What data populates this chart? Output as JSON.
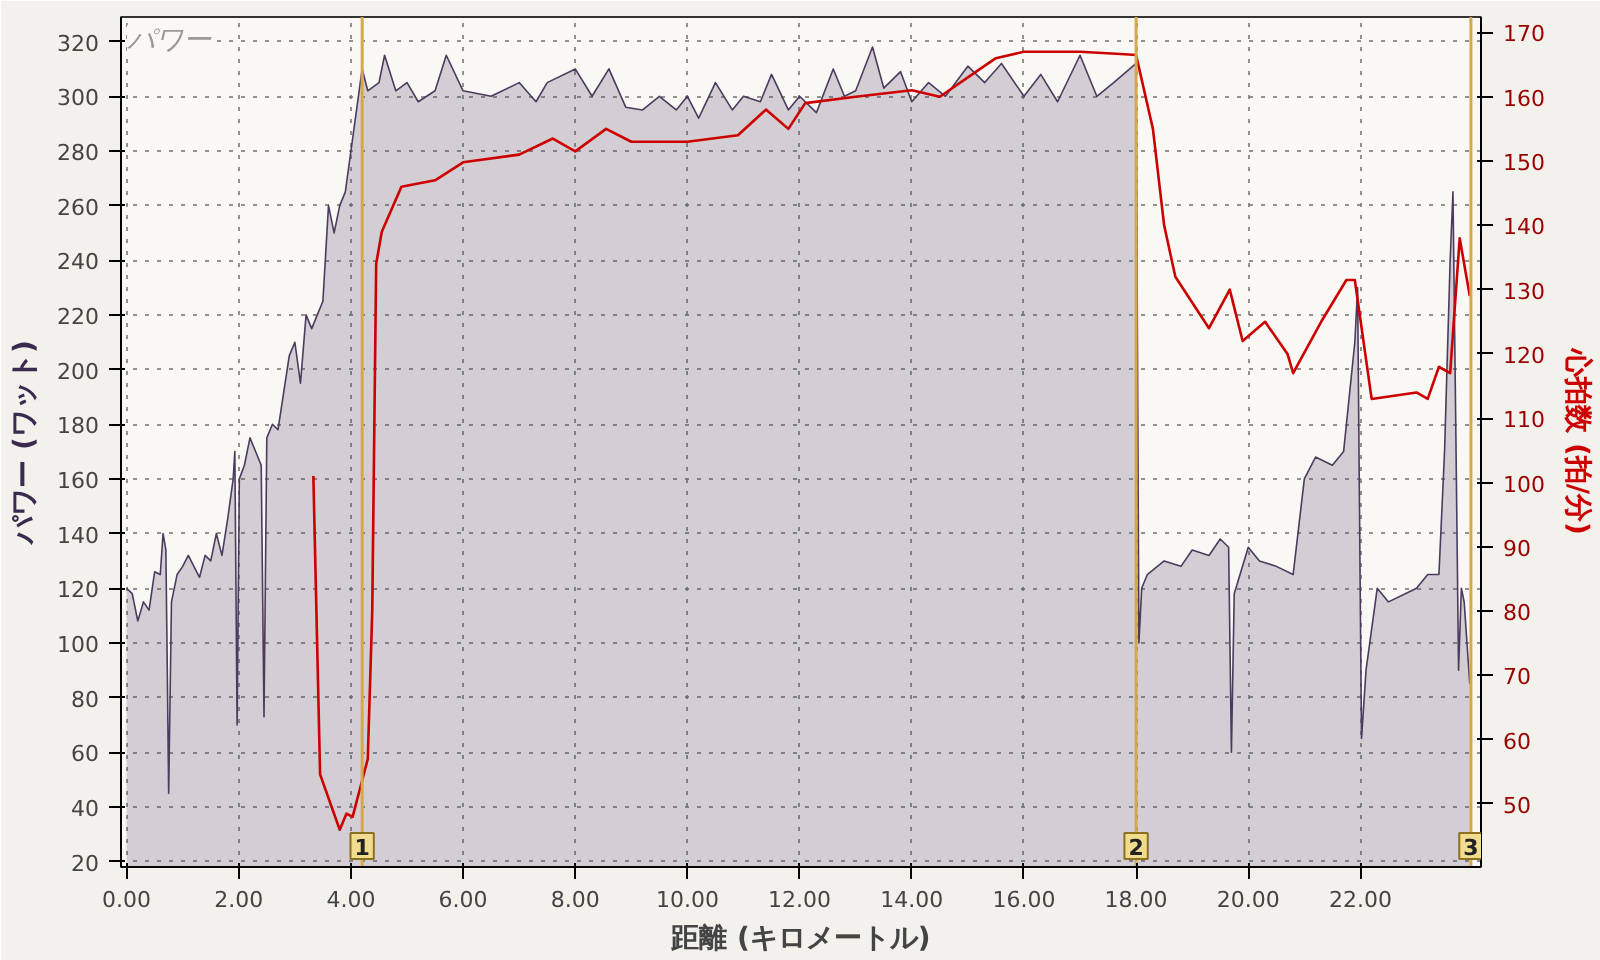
{
  "chart_data": {
    "type": "area",
    "title": "パワー",
    "xlabel": "距離 (キロメートル)",
    "ylabel": "パワー (ワット)",
    "y2label": "心拍数 (拍/分)",
    "xlim": [
      -0.1,
      24.15
    ],
    "ylim": [
      18,
      329
    ],
    "y2lim": [
      40.2,
      172.4
    ],
    "xticks": [
      {
        "value": 0,
        "label": "0.00"
      },
      {
        "value": 2,
        "label": "2.00"
      },
      {
        "value": 4,
        "label": "4.00"
      },
      {
        "value": 6,
        "label": "6.00"
      },
      {
        "value": 8,
        "label": "8.00"
      },
      {
        "value": 10,
        "label": "10.00"
      },
      {
        "value": 12,
        "label": "12.00"
      },
      {
        "value": 14,
        "label": "14.00"
      },
      {
        "value": 16,
        "label": "16.00"
      },
      {
        "value": 18,
        "label": "18.00"
      },
      {
        "value": 20,
        "label": "20.00"
      },
      {
        "value": 22,
        "label": "22.00"
      }
    ],
    "yticks": [
      20,
      40,
      60,
      80,
      100,
      120,
      140,
      160,
      180,
      200,
      220,
      240,
      260,
      280,
      300,
      320
    ],
    "y2ticks": [
      50,
      60,
      70,
      80,
      90,
      100,
      110,
      120,
      130,
      140,
      150,
      160,
      170
    ],
    "grid": true,
    "series": [
      {
        "color": "#4b3b5f",
        "x": [
          0.0,
          0.1,
          0.2,
          0.3,
          0.4,
          0.5,
          0.6,
          0.65,
          0.7,
          0.72,
          0.75,
          0.8,
          0.9,
          1.0,
          1.1,
          1.2,
          1.3,
          1.4,
          1.5,
          1.6,
          1.7,
          1.8,
          1.9,
          1.93,
          1.97,
          2.01,
          2.1,
          2.2,
          2.3,
          2.4,
          2.45,
          2.5,
          2.6,
          2.7,
          2.9,
          3.0,
          3.1,
          3.2,
          3.3,
          3.5,
          3.6,
          3.7,
          3.8,
          3.9,
          4.0,
          4.1,
          4.2,
          4.3,
          4.5,
          4.6,
          4.8,
          5.0,
          5.2,
          5.5,
          5.7,
          6.0,
          6.5,
          7.0,
          7.3,
          7.5,
          8.0,
          8.3,
          8.6,
          8.9,
          9.2,
          9.5,
          9.8,
          10.0,
          10.2,
          10.5,
          10.8,
          11.0,
          11.3,
          11.5,
          11.8,
          12.0,
          12.3,
          12.6,
          12.8,
          13.0,
          13.3,
          13.5,
          13.8,
          14.0,
          14.3,
          14.6,
          15.0,
          15.3,
          15.6,
          16.0,
          16.3,
          16.6,
          17.0,
          17.3,
          17.6,
          18.0,
          18.05,
          18.1,
          18.2,
          18.5,
          18.8,
          19.0,
          19.3,
          19.5,
          19.65,
          19.7,
          19.75,
          20.0,
          20.2,
          20.5,
          20.8,
          21.0,
          21.2,
          21.5,
          21.7,
          21.9,
          21.95,
          22.0,
          22.02,
          22.1,
          22.3,
          22.5,
          22.8,
          23.0,
          23.2,
          23.4,
          23.5,
          23.6,
          23.65,
          23.7,
          23.75,
          23.8,
          23.85,
          23.95
        ],
        "values": [
          120,
          118,
          108,
          115,
          112,
          126,
          125,
          140,
          134,
          100,
          45,
          115,
          125,
          128,
          132,
          128,
          124,
          132,
          130,
          140,
          132,
          145,
          160,
          170,
          70,
          160,
          165,
          175,
          170,
          165,
          73,
          175,
          180,
          178,
          205,
          210,
          195,
          220,
          215,
          225,
          260,
          250,
          260,
          265,
          280,
          295,
          310,
          302,
          305,
          315,
          302,
          305,
          298,
          302,
          315,
          302,
          300,
          305,
          298,
          305,
          310,
          300,
          310,
          296,
          295,
          300,
          295,
          300,
          292,
          305,
          295,
          300,
          298,
          308,
          295,
          300,
          294,
          310,
          300,
          302,
          318,
          303,
          309,
          298,
          305,
          300,
          311,
          305,
          312,
          300,
          308,
          298,
          315,
          300,
          305,
          312,
          100,
          120,
          125,
          130,
          128,
          134,
          132,
          138,
          135,
          60,
          118,
          135,
          130,
          128,
          125,
          160,
          168,
          165,
          170,
          210,
          230,
          110,
          65,
          90,
          120,
          115,
          118,
          120,
          125,
          125,
          170,
          240,
          265,
          180,
          90,
          120,
          115,
          85
        ]
      },
      {
        "type": "line",
        "axis": "y2",
        "color": "#cc0000",
        "x": [
          3.33,
          3.45,
          3.8,
          3.92,
          4.03,
          4.3,
          4.38,
          4.45,
          4.55,
          4.7,
          4.9,
          5.5,
          6.0,
          7.0,
          7.6,
          8.0,
          8.55,
          9.0,
          10.0,
          10.9,
          11.4,
          11.8,
          12.1,
          13.0,
          14.0,
          14.5,
          15.0,
          15.5,
          16.0,
          17.0,
          17.8,
          18.0,
          18.3,
          18.5,
          18.7,
          19.3,
          19.67,
          19.9,
          20.3,
          20.7,
          20.8,
          21.3,
          21.75,
          21.9,
          22.2,
          23.0,
          23.2,
          23.4,
          23.6,
          23.77,
          23.95
        ],
        "values": [
          101,
          54.6,
          46,
          48.5,
          48,
          57,
          80,
          134,
          139,
          142,
          146,
          147,
          149.8,
          151,
          153.5,
          151.5,
          155,
          153,
          153,
          154,
          158,
          155,
          159,
          160,
          161,
          160,
          163,
          166,
          167,
          167,
          166.6,
          166.5,
          155,
          140,
          132,
          124,
          130,
          122,
          125,
          120,
          117,
          125,
          131.5,
          131.5,
          113,
          114,
          113,
          118,
          117,
          138,
          129
        ]
      }
    ],
    "ref_lines": [
      {
        "axis": "x",
        "value": 4.2,
        "color": "#d4a84b"
      },
      {
        "axis": "x",
        "value": 18.0,
        "color": "#d4a84b"
      },
      {
        "axis": "x",
        "value": 23.97,
        "color": "#d4a84b"
      }
    ],
    "annotations": [
      {
        "text": "1",
        "x": 4.2,
        "y": 18
      },
      {
        "text": "2",
        "x": 18.0,
        "y": 18
      },
      {
        "text": "3",
        "x": 23.97,
        "y": 18
      }
    ]
  }
}
